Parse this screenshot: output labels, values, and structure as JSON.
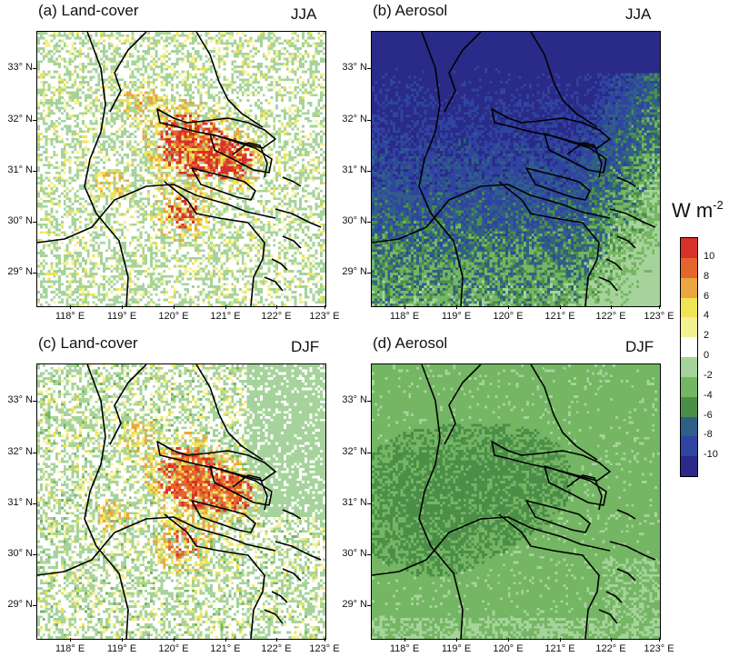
{
  "panels": [
    {
      "title": "(a) Land-cover",
      "season": "JJA",
      "kind": "landcover",
      "winter": false
    },
    {
      "title": "(b) Aerosol",
      "season": "JJA",
      "kind": "aerosol",
      "winter": false
    },
    {
      "title": "(c) Land-cover",
      "season": "DJF",
      "kind": "landcover",
      "winter": true
    },
    {
      "title": "(d) Aerosol",
      "season": "DJF",
      "kind": "aerosol",
      "winter": true
    }
  ],
  "axes": {
    "lat_ticks": [
      "33° N",
      "32° N",
      "31° N",
      "30° N",
      "29° N"
    ],
    "lon_ticks": [
      "118° E",
      "119° E",
      "120° E",
      "121° E",
      "122° E",
      "123° E"
    ],
    "lat_range": [
      28.25,
      33.6
    ],
    "lon_range": [
      117.5,
      123.0
    ]
  },
  "colorbar": {
    "unit_base": "W m",
    "unit_exp": "-2",
    "labels": [
      "10",
      "8",
      "6",
      "4",
      "2",
      "0",
      "-2",
      "-4",
      "-6",
      "-8",
      "-10"
    ],
    "colors": [
      "#d7312a",
      "#e4652e",
      "#eaa640",
      "#eee456",
      "#f4f193",
      "#ffffff",
      "#a6d39b",
      "#74b663",
      "#4b8e48",
      "#2f5f86",
      "#2f44a0",
      "#2a2a88"
    ]
  },
  "chart_data": {
    "type": "heatmap",
    "description_units": "W m-2",
    "colorbar_levels": [
      10,
      8,
      6,
      4,
      2,
      0,
      -2,
      -4,
      -6,
      -8,
      -10
    ],
    "xlabel": "",
    "ylabel": "",
    "x_ticks": [
      "118° E",
      "119° E",
      "120° E",
      "121° E",
      "122° E",
      "123° E"
    ],
    "y_ticks": [
      "33° N",
      "32° N",
      "31° N",
      "30° N",
      "29° N"
    ]
  }
}
